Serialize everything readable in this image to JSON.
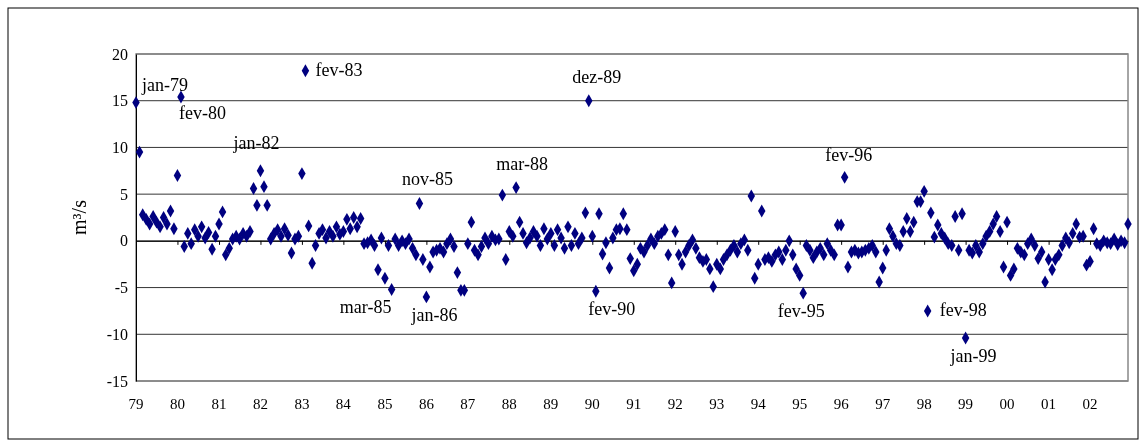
{
  "chart_data": {
    "type": "scatter",
    "ylabel": "m³/s",
    "marker": "diamond",
    "grid": "y",
    "xlim": [
      "1979-01",
      "2002-12"
    ],
    "xticks": [
      {
        "value": "1979-01",
        "label": "79"
      },
      {
        "value": "1980-01",
        "label": "80"
      },
      {
        "value": "1981-01",
        "label": "81"
      },
      {
        "value": "1982-01",
        "label": "82"
      },
      {
        "value": "1983-01",
        "label": "83"
      },
      {
        "value": "1984-01",
        "label": "84"
      },
      {
        "value": "1985-01",
        "label": "85"
      },
      {
        "value": "1986-01",
        "label": "86"
      },
      {
        "value": "1987-01",
        "label": "87"
      },
      {
        "value": "1988-01",
        "label": "88"
      },
      {
        "value": "1989-01",
        "label": "89"
      },
      {
        "value": "1990-01",
        "label": "90"
      },
      {
        "value": "1991-01",
        "label": "91"
      },
      {
        "value": "1992-01",
        "label": "92"
      },
      {
        "value": "1993-01",
        "label": "93"
      },
      {
        "value": "1994-01",
        "label": "94"
      },
      {
        "value": "1995-01",
        "label": "95"
      },
      {
        "value": "1996-01",
        "label": "96"
      },
      {
        "value": "1997-01",
        "label": "97"
      },
      {
        "value": "1998-01",
        "label": "98"
      },
      {
        "value": "1999-01",
        "label": "99"
      },
      {
        "value": "2000-01",
        "label": "00"
      },
      {
        "value": "2001-01",
        "label": "01"
      },
      {
        "value": "2002-01",
        "label": "02"
      }
    ],
    "ylim": [
      -15,
      20
    ],
    "yticks": [
      -15,
      -10,
      -5,
      0,
      5,
      10,
      15,
      20
    ],
    "series": [
      {
        "color": "#000080",
        "x": [
          "1979-01",
          "1979-02",
          "1979-03",
          "1979-04",
          "1979-05",
          "1979-06",
          "1979-07",
          "1979-08",
          "1979-09",
          "1979-10",
          "1979-11",
          "1979-12",
          "1980-01",
          "1980-02",
          "1980-03",
          "1980-04",
          "1980-05",
          "1980-06",
          "1980-07",
          "1980-08",
          "1980-09",
          "1980-10",
          "1980-11",
          "1980-12",
          "1981-01",
          "1981-02",
          "1981-03",
          "1981-04",
          "1981-05",
          "1981-06",
          "1981-07",
          "1981-08",
          "1981-09",
          "1981-10",
          "1981-11",
          "1981-12",
          "1982-01",
          "1982-02",
          "1982-03",
          "1982-04",
          "1982-05",
          "1982-06",
          "1982-07",
          "1982-08",
          "1982-09",
          "1982-10",
          "1982-11",
          "1982-12",
          "1983-01",
          "1983-02",
          "1983-03",
          "1983-04",
          "1983-05",
          "1983-06",
          "1983-07",
          "1983-08",
          "1983-09",
          "1983-10",
          "1983-11",
          "1983-12",
          "1984-01",
          "1984-02",
          "1984-03",
          "1984-04",
          "1984-05",
          "1984-06",
          "1984-07",
          "1984-08",
          "1984-09",
          "1984-10",
          "1984-11",
          "1984-12",
          "1985-01",
          "1985-02",
          "1985-03",
          "1985-04",
          "1985-05",
          "1985-06",
          "1985-07",
          "1985-08",
          "1985-09",
          "1985-10",
          "1985-11",
          "1985-12",
          "1986-01",
          "1986-02",
          "1986-03",
          "1986-04",
          "1986-05",
          "1986-06",
          "1986-07",
          "1986-08",
          "1986-09",
          "1986-10",
          "1986-11",
          "1986-12",
          "1987-01",
          "1987-02",
          "1987-03",
          "1987-04",
          "1987-05",
          "1987-06",
          "1987-07",
          "1987-08",
          "1987-09",
          "1987-10",
          "1987-11",
          "1987-12",
          "1988-01",
          "1988-02",
          "1988-03",
          "1988-04",
          "1988-05",
          "1988-06",
          "1988-07",
          "1988-08",
          "1988-09",
          "1988-10",
          "1988-11",
          "1988-12",
          "1989-01",
          "1989-02",
          "1989-03",
          "1989-04",
          "1989-05",
          "1989-06",
          "1989-07",
          "1989-08",
          "1989-09",
          "1989-10",
          "1989-11",
          "1989-12",
          "1990-01",
          "1990-02",
          "1990-03",
          "1990-04",
          "1990-05",
          "1990-06",
          "1990-07",
          "1990-08",
          "1990-09",
          "1990-10",
          "1990-11",
          "1990-12",
          "1991-01",
          "1991-02",
          "1991-03",
          "1991-04",
          "1991-05",
          "1991-06",
          "1991-07",
          "1991-08",
          "1991-09",
          "1991-10",
          "1991-11",
          "1991-12",
          "1992-01",
          "1992-02",
          "1992-03",
          "1992-04",
          "1992-05",
          "1992-06",
          "1992-07",
          "1992-08",
          "1992-09",
          "1992-10",
          "1992-11",
          "1992-12",
          "1993-01",
          "1993-02",
          "1993-03",
          "1993-04",
          "1993-05",
          "1993-06",
          "1993-07",
          "1993-08",
          "1993-09",
          "1993-10",
          "1993-11",
          "1993-12",
          "1994-01",
          "1994-02",
          "1994-03",
          "1994-04",
          "1994-05",
          "1994-06",
          "1994-07",
          "1994-08",
          "1994-09",
          "1994-10",
          "1994-11",
          "1994-12",
          "1995-01",
          "1995-02",
          "1995-03",
          "1995-04",
          "1995-05",
          "1995-06",
          "1995-07",
          "1995-08",
          "1995-09",
          "1995-10",
          "1995-11",
          "1995-12",
          "1996-01",
          "1996-02",
          "1996-03",
          "1996-04",
          "1996-05",
          "1996-06",
          "1996-07",
          "1996-08",
          "1996-09",
          "1996-10",
          "1996-11",
          "1996-12",
          "1997-01",
          "1997-02",
          "1997-03",
          "1997-04",
          "1997-05",
          "1997-06",
          "1997-07",
          "1997-08",
          "1997-09",
          "1997-10",
          "1997-11",
          "1997-12",
          "1998-01",
          "1998-02",
          "1998-03",
          "1998-04",
          "1998-05",
          "1998-06",
          "1998-07",
          "1998-08",
          "1998-09",
          "1998-10",
          "1998-11",
          "1998-12",
          "1999-01",
          "1999-02",
          "1999-03",
          "1999-04",
          "1999-05",
          "1999-06",
          "1999-07",
          "1999-08",
          "1999-09",
          "1999-10",
          "1999-11",
          "1999-12",
          "2000-01",
          "2000-02",
          "2000-03",
          "2000-04",
          "2000-05",
          "2000-06",
          "2000-07",
          "2000-08",
          "2000-09",
          "2000-10",
          "2000-11",
          "2000-12",
          "2001-01",
          "2001-02",
          "2001-03",
          "2001-04",
          "2001-05",
          "2001-06",
          "2001-07",
          "2001-08",
          "2001-09",
          "2001-10",
          "2001-11",
          "2001-12",
          "2002-01",
          "2002-02",
          "2002-03",
          "2002-04",
          "2002-05",
          "2002-06",
          "2002-07",
          "2002-08",
          "2002-09",
          "2002-10",
          "2002-11",
          "2002-12"
        ],
        "values": [
          14.8,
          9.5,
          2.8,
          2.3,
          1.8,
          2.6,
          2.0,
          1.5,
          2.5,
          1.8,
          3.2,
          1.3,
          7.0,
          15.4,
          -0.6,
          0.8,
          -0.3,
          1.2,
          0.5,
          1.5,
          0.3,
          0.9,
          -0.9,
          0.5,
          1.8,
          3.1,
          -1.5,
          -0.8,
          0.2,
          0.5,
          0.2,
          0.8,
          0.5,
          1.0,
          5.6,
          3.8,
          7.5,
          5.8,
          3.8,
          0.2,
          0.8,
          1.2,
          0.5,
          1.3,
          0.6,
          -1.3,
          0.2,
          0.5,
          7.2,
          18.2,
          1.6,
          -2.4,
          -0.5,
          0.8,
          1.2,
          0.3,
          1.0,
          0.5,
          1.5,
          0.7,
          1.0,
          2.3,
          1.3,
          2.5,
          1.5,
          2.4,
          -0.3,
          -0.2,
          0.1,
          -0.5,
          -3.1,
          0.3,
          -4.0,
          -0.5,
          -5.2,
          0.2,
          -0.5,
          0.0,
          -0.3,
          0.2,
          -0.8,
          -1.5,
          4.0,
          -2.0,
          -6.0,
          -2.8,
          -1.2,
          -1.0,
          -0.8,
          -1.2,
          -0.3,
          0.2,
          -0.6,
          -3.4,
          -5.3,
          -5.3,
          -0.3,
          2.0,
          -1.0,
          -1.5,
          -0.6,
          0.3,
          -0.3,
          0.5,
          0.1,
          0.2,
          4.9,
          -2.0,
          1.0,
          0.5,
          5.7,
          2.0,
          0.8,
          -0.2,
          0.3,
          1.0,
          0.5,
          -0.5,
          1.3,
          0.2,
          0.8,
          -0.5,
          1.2,
          0.3,
          -0.8,
          1.5,
          -0.5,
          0.8,
          -0.3,
          0.3,
          3.0,
          15.0,
          0.5,
          -5.4,
          2.9,
          -1.4,
          -0.2,
          -2.9,
          0.3,
          1.2,
          1.3,
          2.9,
          1.2,
          -1.9,
          -3.2,
          -2.5,
          -0.8,
          -1.2,
          -0.5,
          0.2,
          -0.3,
          0.5,
          0.8,
          1.2,
          -1.5,
          -4.5,
          1.0,
          -1.5,
          -2.5,
          -1.2,
          -0.5,
          0.1,
          -0.8,
          -1.8,
          -2.2,
          -2.0,
          -3.0,
          -4.9,
          -2.5,
          -3.0,
          -2.0,
          -1.5,
          -1.0,
          -0.5,
          -1.2,
          -0.3,
          0.1,
          -1.0,
          4.8,
          -4.0,
          -2.5,
          3.2,
          -2.0,
          -1.8,
          -2.2,
          -1.5,
          -1.2,
          -2.0,
          -1.0,
          0.0,
          -1.5,
          -3.0,
          -3.7,
          -5.6,
          -0.5,
          -1.0,
          -1.8,
          -1.2,
          -0.8,
          -1.5,
          -0.3,
          -1.0,
          -1.5,
          1.7,
          1.7,
          6.8,
          -2.8,
          -1.2,
          -1.0,
          -1.3,
          -1.2,
          -1.0,
          -0.8,
          -0.5,
          -1.2,
          -4.4,
          -2.9,
          -1.0,
          1.3,
          0.5,
          -0.3,
          -0.5,
          1.0,
          2.4,
          1.0,
          2.0,
          4.2,
          4.2,
          5.3,
          -7.5,
          3.0,
          0.4,
          1.7,
          0.8,
          0.3,
          -0.3,
          -0.5,
          2.6,
          -1.0,
          2.9,
          -10.4,
          -1.0,
          -1.3,
          -0.5,
          -1.2,
          -0.3,
          0.5,
          1.0,
          1.8,
          2.6,
          1.0,
          -2.8,
          2.0,
          -3.7,
          -3.0,
          -0.8,
          -1.2,
          -1.5,
          -0.3,
          0.2,
          -0.5,
          -1.9,
          -1.2,
          -4.4,
          -2.0,
          -3.1,
          -2.0,
          -1.5,
          -0.5,
          0.3,
          -0.2,
          0.8,
          1.8,
          0.4,
          0.5,
          -2.6,
          -2.2,
          1.3,
          -0.3,
          -0.5,
          0.0,
          -0.2,
          -0.3,
          0.2,
          -0.4,
          0.0,
          -0.2,
          1.8
        ]
      }
    ],
    "annotations": [
      {
        "text": "jan-79",
        "x": "1979-01",
        "y": 14.8
      },
      {
        "text": "fev-80",
        "x": "1980-02",
        "y": 15.4
      },
      {
        "text": "jan-82",
        "x": "1982-01",
        "y": 7.5
      },
      {
        "text": "fev-83",
        "x": "1983-02",
        "y": 18.2
      },
      {
        "text": "mar-85",
        "x": "1985-03",
        "y": -5.2
      },
      {
        "text": "nov-85",
        "x": "1985-11",
        "y": 4.0
      },
      {
        "text": "jan-86",
        "x": "1986-01",
        "y": -6.0
      },
      {
        "text": "mar-88",
        "x": "1988-03",
        "y": 5.7
      },
      {
        "text": "dez-89",
        "x": "1989-12",
        "y": 15.0
      },
      {
        "text": "fev-90",
        "x": "1990-02",
        "y": -5.4
      },
      {
        "text": "fev-95",
        "x": "1995-02",
        "y": -5.6
      },
      {
        "text": "fev-96",
        "x": "1996-02",
        "y": 6.8
      },
      {
        "text": "fev-98",
        "x": "1998-02",
        "y": -7.5
      },
      {
        "text": "jan-99",
        "x": "1999-01",
        "y": -10.4
      }
    ]
  }
}
